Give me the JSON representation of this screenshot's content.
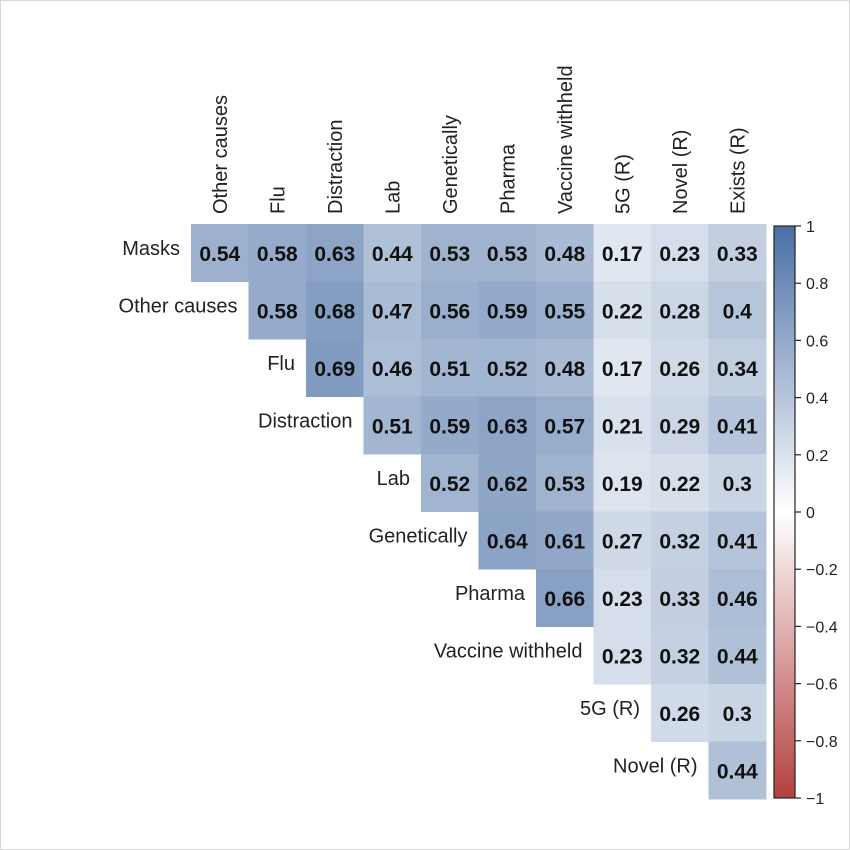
{
  "chart_data": {
    "type": "heatmap",
    "title": "",
    "columns": [
      "Other causes",
      "Flu",
      "Distraction",
      "Lab",
      "Genetically",
      "Pharma",
      "Vaccine withheld",
      "5G (R)",
      "Novel (R)",
      "Exists (R)"
    ],
    "rows": [
      "Masks",
      "Other causes",
      "Flu",
      "Distraction",
      "Lab",
      "Genetically",
      "Pharma",
      "Vaccine withheld",
      "5G (R)",
      "Novel (R)"
    ],
    "values": [
      [
        0.54,
        0.58,
        0.63,
        0.44,
        0.53,
        0.53,
        0.48,
        0.17,
        0.23,
        0.33
      ],
      [
        null,
        0.58,
        0.68,
        0.47,
        0.56,
        0.59,
        0.55,
        0.22,
        0.28,
        0.4
      ],
      [
        null,
        null,
        0.69,
        0.46,
        0.51,
        0.52,
        0.48,
        0.17,
        0.26,
        0.34
      ],
      [
        null,
        null,
        null,
        0.51,
        0.59,
        0.63,
        0.57,
        0.21,
        0.29,
        0.41
      ],
      [
        null,
        null,
        null,
        null,
        0.52,
        0.62,
        0.53,
        0.19,
        0.22,
        0.3
      ],
      [
        null,
        null,
        null,
        null,
        null,
        0.64,
        0.61,
        0.27,
        0.32,
        0.41
      ],
      [
        null,
        null,
        null,
        null,
        null,
        null,
        0.66,
        0.23,
        0.33,
        0.46
      ],
      [
        null,
        null,
        null,
        null,
        null,
        null,
        null,
        0.23,
        0.32,
        0.44
      ],
      [
        null,
        null,
        null,
        null,
        null,
        null,
        null,
        null,
        0.26,
        0.3
      ],
      [
        null,
        null,
        null,
        null,
        null,
        null,
        null,
        null,
        null,
        0.44
      ]
    ],
    "color_scale": {
      "min": -1,
      "max": 1,
      "low": "#b2403f",
      "mid": "#ffffff",
      "high": "#4a6fa5",
      "ticks": [
        1,
        0.8,
        0.6,
        0.4,
        0.2,
        0,
        -0.2,
        -0.4,
        -0.6,
        -0.8,
        -1
      ],
      "tick_labels": [
        "1",
        "0.8",
        "0.6",
        "0.4",
        "0.2",
        "0",
        "−0.2",
        "−0.4",
        "−0.6",
        "−0.8",
        "−1"
      ]
    },
    "legend": "right"
  }
}
